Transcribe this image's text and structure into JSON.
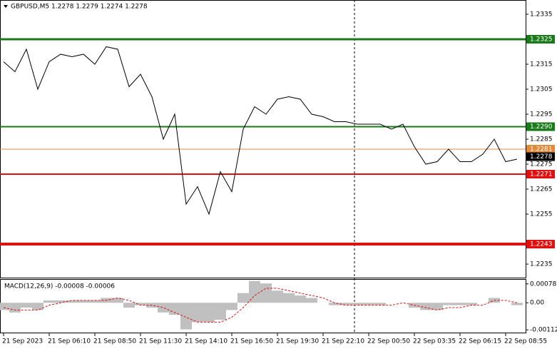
{
  "chart_data": [
    {
      "type": "line",
      "title": "GBPUSD,M5  1.2278 1.2279 1.2274 1.2278",
      "categories": [
        "21 Sep 2023",
        null,
        null,
        null,
        "21 Sep 06:10",
        null,
        null,
        null,
        "21 Sep 08:50",
        null,
        null,
        null,
        "21 Sep 11:30",
        null,
        null,
        null,
        "21 Sep 14:10",
        null,
        null,
        null,
        "21 Sep 16:50",
        null,
        null,
        null,
        "21 Sep 19:30",
        null,
        null,
        null,
        "21 Sep 22:10",
        null,
        null,
        null,
        "22 Sep 00:50",
        null,
        null,
        null,
        "22 Sep 03:35",
        null,
        null,
        null,
        "22 Sep 06:15",
        null,
        null,
        null,
        "22 Sep 08:55",
        null
      ],
      "values": [
        1.2316,
        1.2312,
        1.2321,
        1.2305,
        1.2316,
        1.2319,
        1.2318,
        1.2319,
        1.2315,
        1.2322,
        1.2321,
        1.2306,
        1.2311,
        1.2302,
        1.2285,
        1.2295,
        1.2259,
        1.2266,
        1.2255,
        1.2272,
        1.2264,
        1.2289,
        1.2298,
        1.2295,
        1.2301,
        1.2302,
        1.2301,
        1.2295,
        1.2294,
        1.2292,
        1.2292,
        1.2291,
        1.2291,
        1.2291,
        1.2289,
        1.2291,
        1.2282,
        1.2275,
        1.2276,
        1.2281,
        1.2276,
        1.2276,
        1.2279,
        1.2285,
        1.2276,
        1.2277
      ],
      "color": "#000000",
      "ylim": [
        1.22293,
        1.23407
      ],
      "yticks": [
        1.2335,
        1.2315,
        1.2305,
        1.2295,
        1.2285,
        1.2275,
        1.2265,
        1.2255,
        1.2235
      ],
      "levels": [
        {
          "value": 1.2325,
          "label": "1.2325",
          "color": "#1a7a1a"
        },
        {
          "value": 1.229,
          "label": "1.2290",
          "color": "#1a7a1a"
        },
        {
          "value": 1.2281,
          "label": "1.2281",
          "color": "#e08a3c"
        },
        {
          "value": 1.2278,
          "label": "1.2278",
          "color": "#000000"
        },
        {
          "value": 1.2271,
          "label": "1.2271",
          "color": "#e01010"
        },
        {
          "value": 1.2243,
          "label": "1.2243",
          "color": "#e01010"
        }
      ]
    },
    {
      "type": "macd",
      "title": "MACD(12,26,9) -0.00008 -0.00006",
      "ylim": [
        -0.00126,
        0.00095
      ],
      "yticks": [
        0.00078,
        {
          "value": 0,
          "label": "0.00"
        },
        -0.00112
      ],
      "series": [
        {
          "name": "MACD",
          "color": "#c0c0c0",
          "values": [
            -0.0003,
            -0.0004,
            -0.0002,
            -0.0003,
            0.0001,
            0.0001,
            0.0001,
            0.0001,
            0.0001,
            0.0002,
            0.0002,
            -0.0002,
            -0.0001,
            -0.0002,
            -0.0004,
            -0.0005,
            -0.0011,
            -0.0008,
            -0.0008,
            -0.0007,
            -0.0003,
            0.0004,
            0.0009,
            0.0008,
            0.0005,
            0.0004,
            0.0003,
            0.0002,
            0,
            -0.0001,
            -0.0001,
            -0.0001,
            -0.0001,
            -0.0001,
            0,
            0,
            -0.0002,
            -0.0003,
            -0.0003,
            -0.0001,
            -0.0001,
            -0.0001,
            0,
            0.0002,
            0,
            -0.0001
          ]
        },
        {
          "name": "Signal",
          "color": "#e01010",
          "values": [
            -0.0002,
            -0.0003,
            -0.0003,
            -0.0003,
            -0.0001,
            0,
            0.0001,
            0.0001,
            0.0001,
            0.0001,
            0.0002,
            0.0001,
            -0.0001,
            -0.0001,
            -0.0002,
            -0.0004,
            -0.0006,
            -0.0008,
            -0.0008,
            -0.0008,
            -0.0006,
            -0.0002,
            0.0003,
            0.0006,
            0.0006,
            0.0005,
            0.0004,
            0.0003,
            0.0002,
            0,
            -0.0001,
            -0.0001,
            -0.0001,
            -0.0001,
            -0.0001,
            0,
            -0.0001,
            -0.0002,
            -0.0003,
            -0.0002,
            -0.0002,
            -0.0001,
            -0.0001,
            0.0001,
            0.0001,
            0
          ]
        }
      ]
    }
  ]
}
